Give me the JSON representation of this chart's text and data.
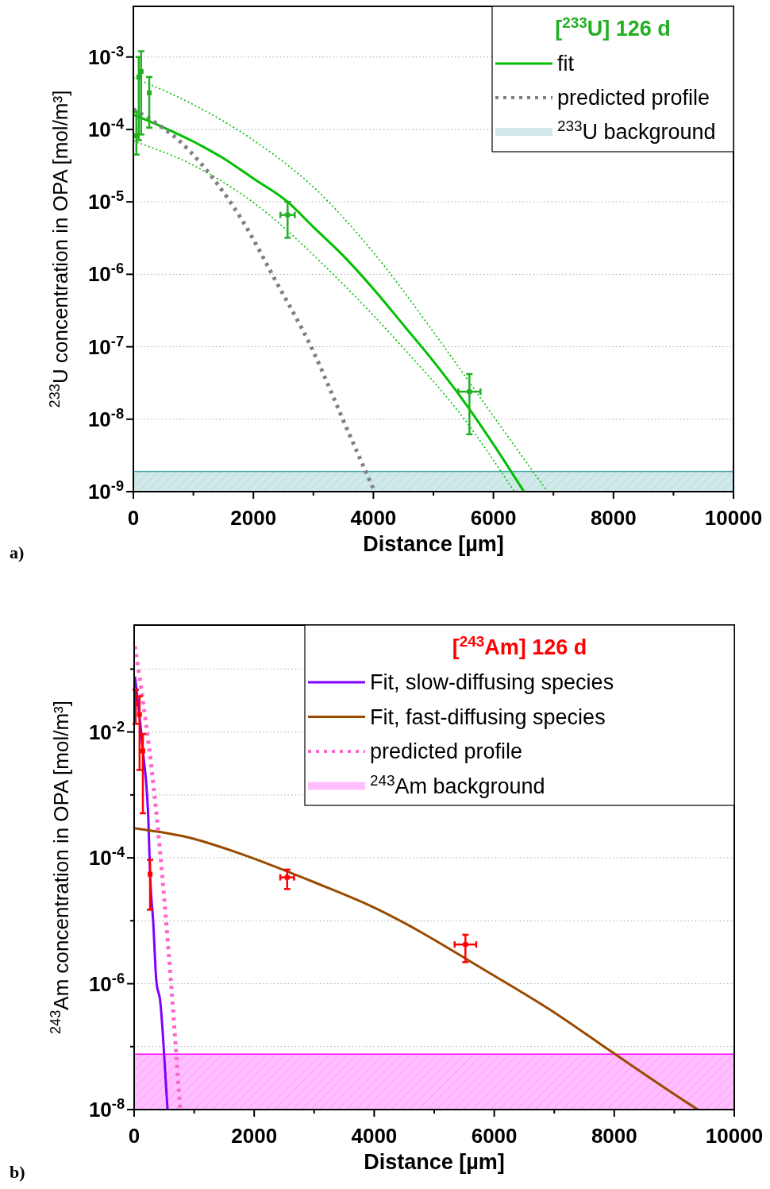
{
  "chart_data": [
    {
      "type": "line",
      "legend_title": "[$^{233}$U] 126 d",
      "xlabel": "Distance [µm]",
      "ylabel": "$^{233}$U concentration in OPA [mol/m³]",
      "annotations": [
        "a)"
      ],
      "log": "y",
      "grid": "y",
      "legend": "top right",
      "xlim": [
        0,
        10000
      ],
      "xticks": [
        0,
        {
          "value": 1000,
          "label": null
        },
        2000,
        {
          "value": 3000,
          "label": null
        },
        4000,
        {
          "value": 5000,
          "label": null
        },
        6000,
        {
          "value": 7000,
          "label": null
        },
        8000,
        {
          "value": 9000,
          "label": null
        },
        10000
      ],
      "ylim": [
        1e-09,
        0.005
      ],
      "yticks": [
        {
          "value": 1e-09,
          "label": "10$^{-9}$"
        },
        {
          "value": 1e-08,
          "label": "10$^{-8}$"
        },
        {
          "value": 1e-07,
          "label": "10$^{-7}$"
        },
        {
          "value": 1e-06,
          "label": "10$^{-6}$"
        },
        {
          "value": 1e-05,
          "label": "10$^{-5}$"
        },
        {
          "value": 0.0001,
          "label": "10$^{-4}$"
        },
        {
          "value": 0.001,
          "label": "10$^{-3}$"
        }
      ],
      "bands": [
        {
          "axis": "y",
          "from": 1e-09,
          "to": 1.9e-09,
          "label": "$^{233}$U background",
          "color": "#4aa8a8"
        }
      ],
      "series": [
        {
          "type": "line",
          "name": "fit",
          "color": "#00c000",
          "line_style": "solid",
          "x": [
            0,
            500,
            1000,
            1500,
            2000,
            2570,
            3000,
            3500,
            4000,
            4500,
            5000,
            5500,
            6000,
            6508
          ],
          "values": [
            0.00016,
            0.000107,
            6.8e-05,
            4e-05,
            2.1e-05,
            1e-05,
            4.5e-06,
            1.8e-06,
            6.3e-07,
            2e-07,
            6.3e-08,
            1.8e-08,
            4.5e-09,
            1e-09
          ]
        },
        {
          "type": "line",
          "color": "#00c000",
          "line_style": "dotted",
          "x": [
            0,
            1000,
            2000,
            3000,
            4000,
            5000,
            6000,
            6900
          ],
          "values": [
            0.00052,
            0.00022,
            7.1e-05,
            1.6e-05,
            2e-06,
            1.6e-07,
            1.1e-08,
            1e-09
          ]
        },
        {
          "type": "line",
          "color": "#00c000",
          "line_style": "dotted",
          "x": [
            0,
            1000,
            1985,
            3330,
            4480,
            5515,
            6350
          ],
          "values": [
            6.9e-05,
            3.2e-05,
            1e-05,
            1e-06,
            1e-07,
            1e-08,
            1e-09
          ]
        },
        {
          "type": "line",
          "name": "predicted profile",
          "color": "#808080",
          "line_style": "dashed",
          "x": [
            0,
            423,
            780,
            1111,
            1415,
            1812,
            2380,
            2937,
            3598,
            4020
          ],
          "values": [
            0.00019,
            0.000115,
            6.8e-05,
            3.5e-05,
            1.7e-05,
            5.6e-06,
            7.9e-07,
            1.1e-07,
            6.2e-09,
            1e-09
          ]
        },
        {
          "type": "scatter",
          "color": "#22b022",
          "marker": "square",
          "x": [
            50,
            90,
            130,
            265,
            2570,
            5600
          ],
          "values": [
            8.2e-05,
            0.00053,
            0.00063,
            0.00032,
            6.6e-06,
            2.4e-08
          ],
          "errors": [
            [
              4.5e-05,
              0.000175
            ],
            [
              7.1e-05,
              0.001
            ],
            [
              8.5e-05,
              0.0012
            ],
            [
              0.000106,
              0.00053
            ],
            [
              3.2e-06,
              1e-05
            ],
            [
              6.2e-09,
              4.2e-08
            ]
          ],
          "xerrors": [
            null,
            null,
            null,
            null,
            120,
            185
          ]
        }
      ]
    },
    {
      "type": "line",
      "legend_title": "[$^{243}$Am] 126 d",
      "xlabel": "Distance [µm]",
      "ylabel": "$^{243}$Am concentration in OPA [mol/m³]",
      "annotations": [
        "b)"
      ],
      "log": "y",
      "grid": "y",
      "legend": "top right",
      "xlim": [
        0,
        10000
      ],
      "xticks": [
        0,
        {
          "value": 1000,
          "label": null
        },
        2000,
        {
          "value": 3000,
          "label": null
        },
        4000,
        {
          "value": 5000,
          "label": null
        },
        6000,
        {
          "value": 7000,
          "label": null
        },
        8000,
        {
          "value": 9000,
          "label": null
        },
        10000
      ],
      "ylim": [
        1e-08,
        0.5
      ],
      "yticks": [
        {
          "value": 1e-08,
          "label": "10$^{-8}$"
        },
        {
          "value": 1e-07,
          "label": null
        },
        {
          "value": 1e-06,
          "label": "10$^{-6}$"
        },
        {
          "value": 1e-05,
          "label": null
        },
        {
          "value": 0.0001,
          "label": "10$^{-4}$"
        },
        {
          "value": 0.001,
          "label": null
        },
        {
          "value": 0.01,
          "label": "10$^{-2}$"
        },
        {
          "value": 0.1,
          "label": null
        }
      ],
      "bands": [
        {
          "axis": "y",
          "from": 1e-08,
          "to": 7.6e-08,
          "label": "$^{243}$Am background",
          "color": "#ff00ff"
        }
      ],
      "series": [
        {
          "type": "line",
          "name": "Fit, slow-diffusing species",
          "color": "#8000ff",
          "line_style": "solid",
          "x": [
            13,
            145,
            238,
            265,
            318,
            370,
            437,
            476,
            556
          ],
          "values": [
            0.076,
            0.0051,
            0.00038,
            5.5e-05,
            9.5e-06,
            1.1e-06,
            5e-07,
            1.7e-07,
            1e-08
          ]
        },
        {
          "type": "line",
          "name": "Fit, fast-diffusing species",
          "color": "#9a4a00",
          "line_style": "solid",
          "x": [
            0,
            1000,
            1733,
            3000,
            3955,
            5966,
            7000,
            7923,
            9246,
            9392
          ],
          "values": [
            0.000295,
            0.0002,
            0.00012,
            4.1e-05,
            1.7e-05,
            1.4e-06,
            3.5e-07,
            8.7e-08,
            1.23e-08,
            1e-08
          ]
        },
        {
          "type": "line",
          "name": "predicted profile",
          "color": "#ff66cc",
          "line_style": "dashed",
          "x": [
            13,
            384,
            569,
            767
          ],
          "values": [
            0.23,
            0.00038,
            3.7e-06,
            1e-08
          ]
        },
        {
          "type": "scatter",
          "color": "#ff0000",
          "marker": "square",
          "x": [
            26,
            90,
            145,
            265,
            2550,
            5520
          ],
          "values": [
            0.028,
            0.019,
            0.005,
            5.5e-05,
            4.9e-05,
            4.2e-06
          ],
          "errors": [
            [
              0.0135,
              0.047
            ],
            [
              0.0025,
              0.037
            ],
            [
              0.00051,
              0.0093
            ],
            [
              1.5e-05,
              9.3e-05
            ],
            [
              3.2e-05,
              6.5e-05
            ],
            [
              2.2e-06,
              6e-06
            ]
          ],
          "xerrors": [
            null,
            null,
            null,
            null,
            115,
            180
          ]
        }
      ]
    }
  ]
}
